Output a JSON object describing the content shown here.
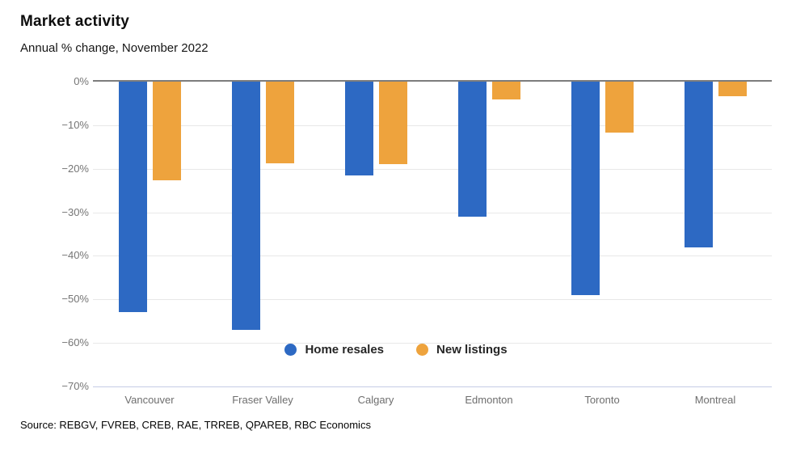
{
  "title": "Market activity",
  "subtitle": "Annual % change, November 2022",
  "source": "Source: REBGV, FVREB, CREB, RAE, TRREB, QPAREB, RBC Economics",
  "legend": [
    {
      "label": "Home resales",
      "color": "#2d69c3"
    },
    {
      "label": "New listings",
      "color": "#eea33d"
    }
  ],
  "colors": {
    "home_resales": "#2d69c3",
    "new_listings": "#eea33d",
    "zero_axis": "#7d7d7d",
    "gridline": "#e8e8e8",
    "bottom_gridline": "#c5cbe6",
    "tick_text": "#757575"
  },
  "chart_data": {
    "type": "bar",
    "title": "Market activity",
    "subtitle": "Annual % change, November 2022",
    "categories": [
      "Vancouver",
      "Fraser Valley",
      "Calgary",
      "Edmonton",
      "Toronto",
      "Montreal"
    ],
    "series": [
      {
        "name": "Home resales",
        "color": "#2d69c3",
        "values": [
          -53,
          -57,
          -21.5,
          -31,
          -49,
          -38
        ]
      },
      {
        "name": "New listings",
        "color": "#eea33d",
        "values": [
          -22.7,
          -18.8,
          -19,
          -4,
          -11.7,
          -3.4
        ]
      }
    ],
    "xlabel": "",
    "ylabel": "Annual % change",
    "unit": "%",
    "ylim": [
      -70,
      0
    ],
    "yticks": [
      "0%",
      "−10%",
      "−20%",
      "−30%",
      "−40%",
      "−50%",
      "−60%",
      "−70%"
    ],
    "grid": true,
    "legend_position": "bottom-center-inside"
  }
}
